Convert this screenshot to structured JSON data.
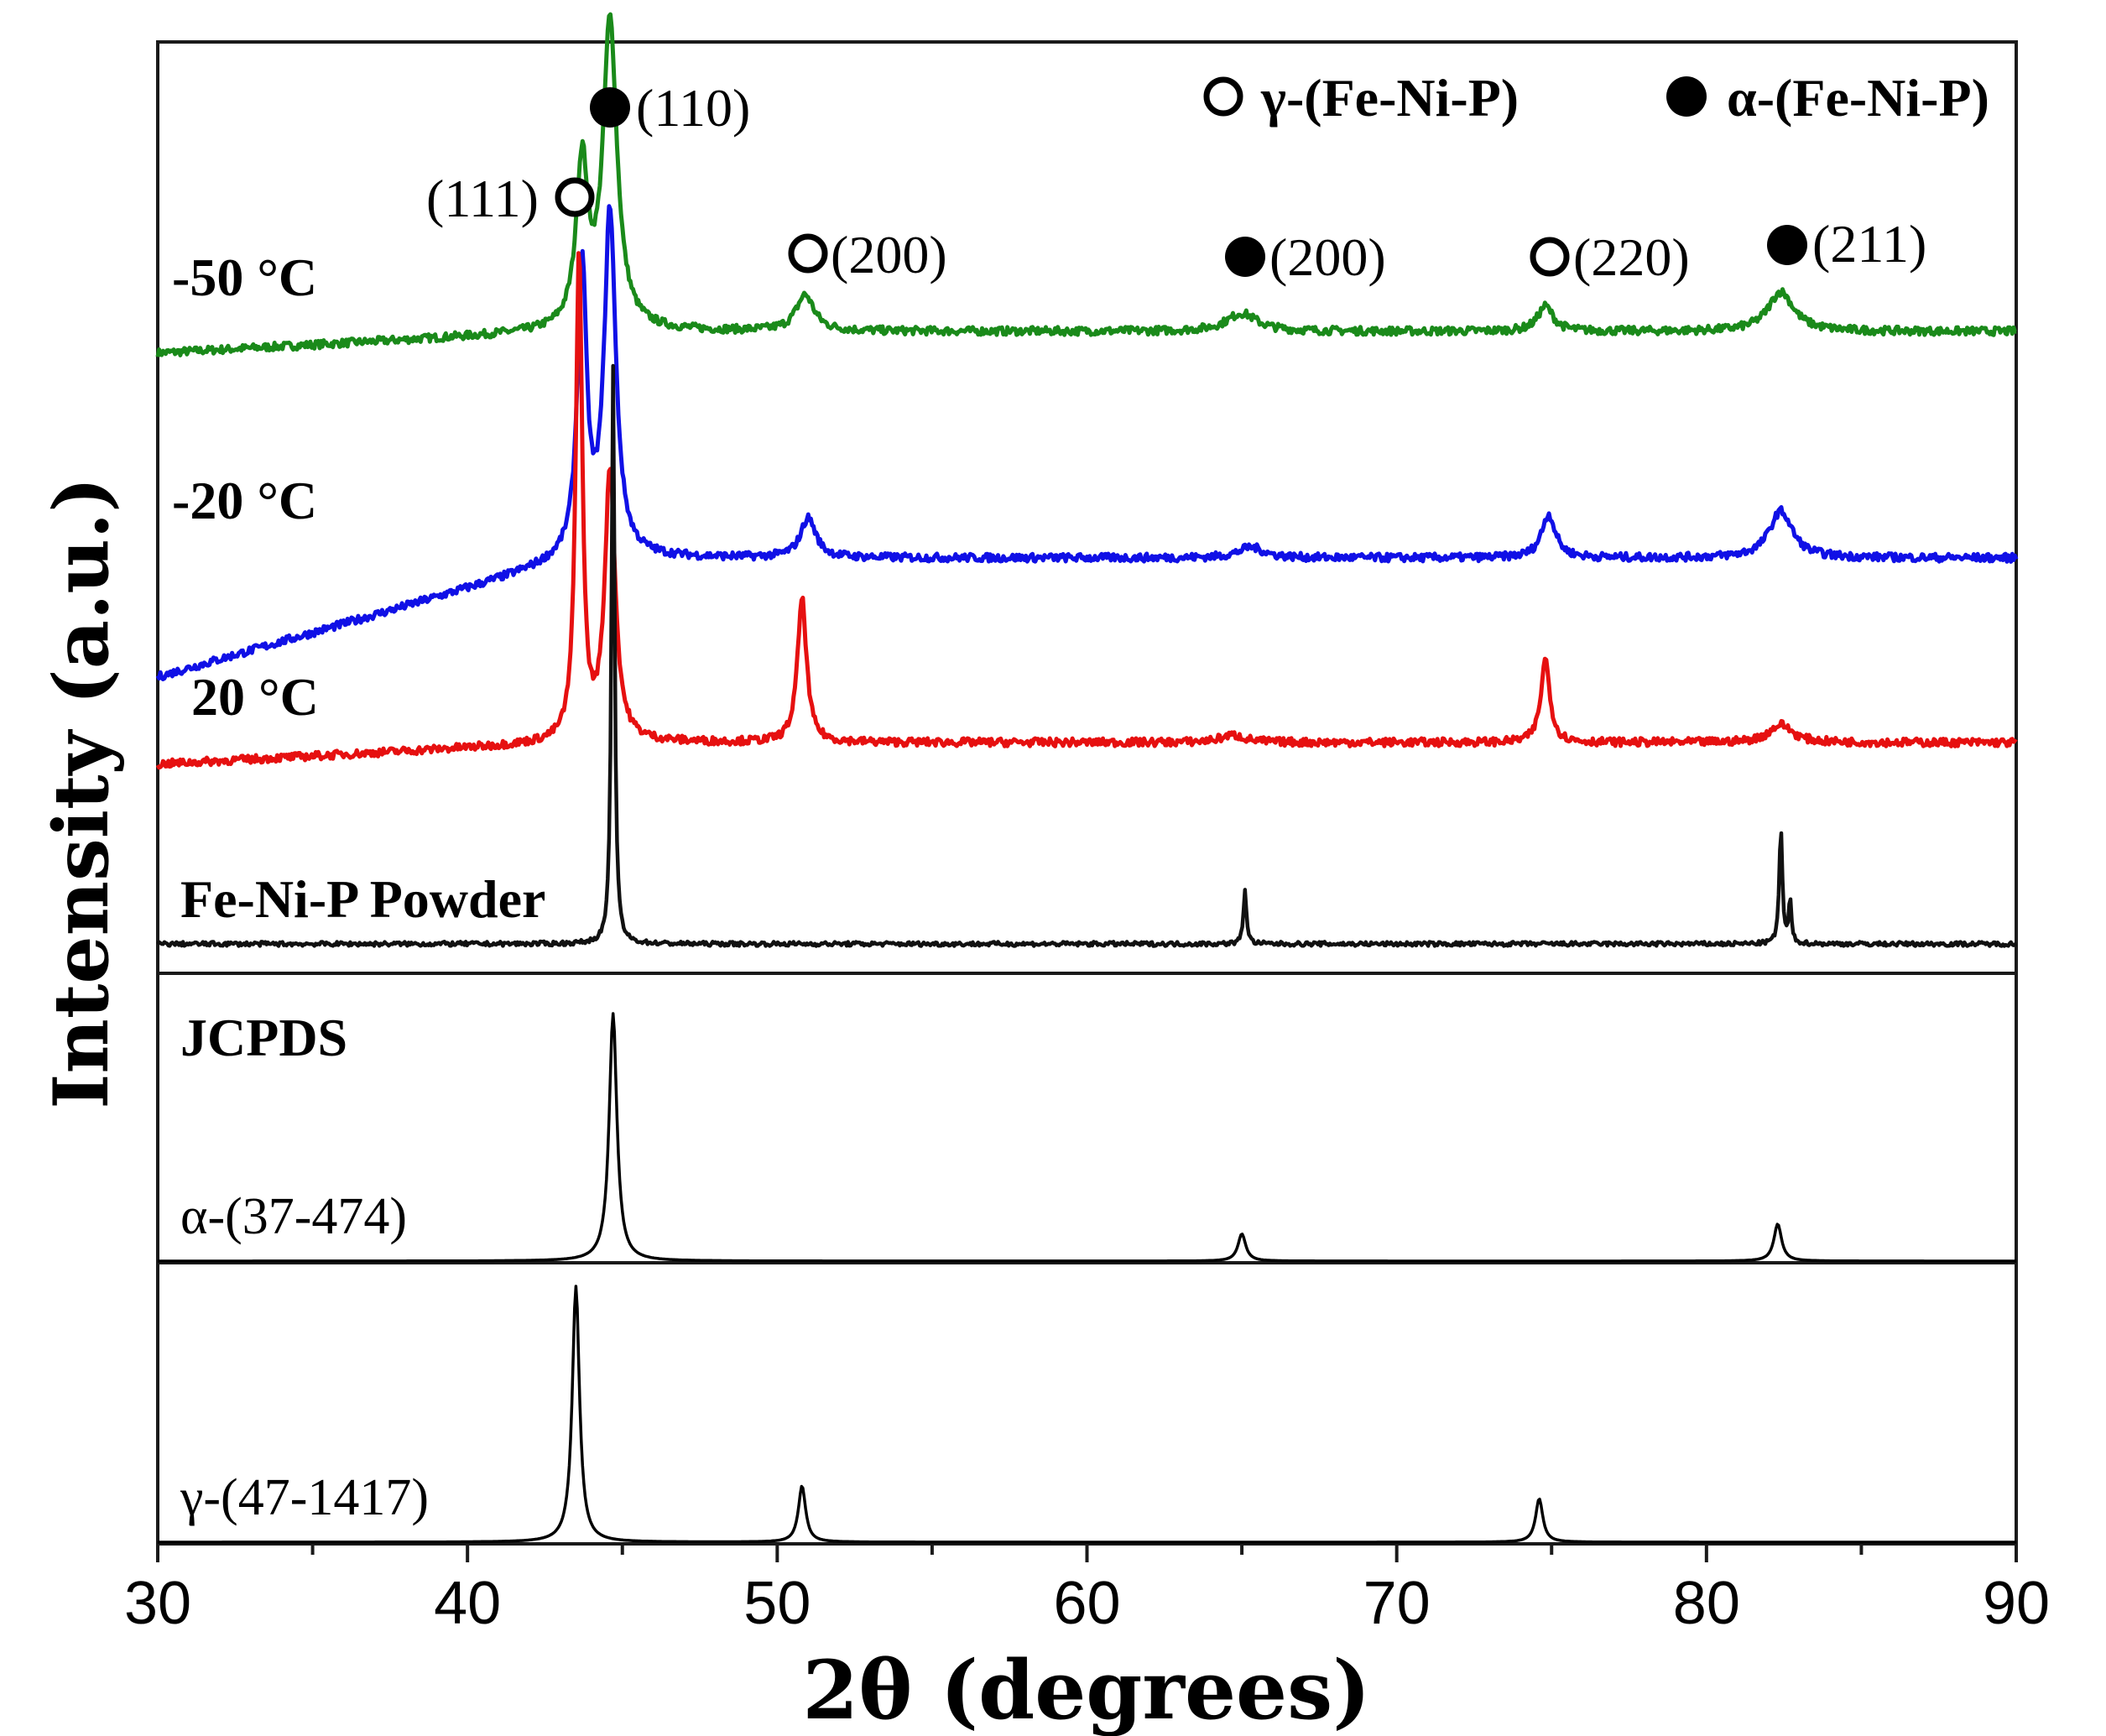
{
  "chart_data": {
    "type": "line",
    "title": "",
    "xlabel": "2θ (degrees)",
    "ylabel": "Intensity (a.u.)",
    "xlim": [
      30,
      90
    ],
    "xticks": [
      30,
      40,
      50,
      60,
      70,
      80,
      90
    ],
    "xtick_labels": [
      "30",
      "40",
      "50",
      "60",
      "70",
      "80",
      "90"
    ],
    "grid": false,
    "legend": [
      {
        "marker": "open-circle",
        "label": "γ-(Fe-Ni-P)"
      },
      {
        "marker": "filled-circle",
        "label": "α-(Fe-Ni-P)"
      }
    ],
    "panels": [
      {
        "name": "samples",
        "series": [
          {
            "name": "-50 °C",
            "color": "#1a8a1a",
            "baseline_start": 0.4,
            "baseline_end": 0.71,
            "noise": 0.011,
            "peaks": [
              {
                "x": 43.7,
                "height": 0.45,
                "width": 0.45
              },
              {
                "x": 44.6,
                "height": 0.85,
                "width": 0.55
              },
              {
                "x": 50.9,
                "height": 0.1,
                "width": 0.7
              },
              {
                "x": 65.0,
                "height": 0.05,
                "width": 1.2
              },
              {
                "x": 74.8,
                "height": 0.07,
                "width": 0.6
              },
              {
                "x": 82.4,
                "height": 0.11,
                "width": 1.0
              }
            ]
          },
          {
            "name": "-20 °C",
            "color": "#1010e6",
            "baseline_start": 0.4,
            "baseline_end": 0.71,
            "noise": 0.011,
            "peaks": [
              {
                "x": 43.7,
                "height": 0.8,
                "width": 0.35
              },
              {
                "x": 44.6,
                "height": 0.95,
                "width": 0.45
              },
              {
                "x": 51.0,
                "height": 0.11,
                "width": 0.6
              },
              {
                "x": 65.3,
                "height": 0.03,
                "width": 1.0
              },
              {
                "x": 74.9,
                "height": 0.12,
                "width": 0.55
              },
              {
                "x": 82.4,
                "height": 0.13,
                "width": 0.9
              }
            ]
          },
          {
            "name": "20 °C",
            "color": "#e61010",
            "baseline_start": 0.4,
            "baseline_end": 0.71,
            "noise": 0.011,
            "peaks": [
              {
                "x": 43.6,
                "height": 1.35,
                "width": 0.25
              },
              {
                "x": 44.6,
                "height": 0.75,
                "width": 0.4
              },
              {
                "x": 50.8,
                "height": 0.4,
                "width": 0.35
              },
              {
                "x": 64.7,
                "height": 0.02,
                "width": 1.0
              },
              {
                "x": 74.8,
                "height": 0.23,
                "width": 0.35
              },
              {
                "x": 82.4,
                "height": 0.05,
                "width": 0.9
              }
            ]
          },
          {
            "name": "Fe-Ni-P Powder",
            "color": "#111111",
            "baseline_start": 0.25,
            "baseline_end": 0.25,
            "noise": 0.006,
            "peaks": [
              {
                "x": 44.7,
                "height": 1.6,
                "width": 0.12
              },
              {
                "x": 65.1,
                "height": 0.15,
                "width": 0.12
              },
              {
                "x": 82.4,
                "height": 0.32,
                "width": 0.12
              },
              {
                "x": 82.7,
                "height": 0.12,
                "width": 0.1
              }
            ]
          }
        ]
      },
      {
        "name": "JCPDS α",
        "header": "JCPDS",
        "label": "α-(37-474)",
        "series": [
          {
            "name": "α-(37-474)",
            "color": "#000000",
            "peaks": [
              {
                "x": 44.7,
                "height": 1.0,
                "width": 0.3
              },
              {
                "x": 65.0,
                "height": 0.11,
                "width": 0.3
              },
              {
                "x": 82.3,
                "height": 0.15,
                "width": 0.3
              }
            ]
          }
        ]
      },
      {
        "name": "JCPDS γ",
        "label": "γ-(47-1417)",
        "series": [
          {
            "name": "γ-(47-1417)",
            "color": "#000000",
            "peaks": [
              {
                "x": 43.5,
                "height": 1.0,
                "width": 0.28
              },
              {
                "x": 50.8,
                "height": 0.22,
                "width": 0.28
              },
              {
                "x": 74.6,
                "height": 0.17,
                "width": 0.28
              }
            ]
          }
        ]
      }
    ],
    "annotations": [
      {
        "text": "(111)",
        "marker": "open-circle",
        "marker_side": "right",
        "x": 43.7
      },
      {
        "text": "(110)",
        "marker": "filled-circle",
        "marker_side": "left",
        "x": 44.6
      },
      {
        "text": "(200)",
        "marker": "open-circle",
        "marker_side": "left",
        "x": 51.0
      },
      {
        "text": "(200)",
        "marker": "filled-circle",
        "marker_side": "left",
        "x": 65.3
      },
      {
        "text": "(220)",
        "marker": "open-circle",
        "marker_side": "left",
        "x": 74.9
      },
      {
        "text": "(211)",
        "marker": "filled-circle",
        "marker_side": "left",
        "x": 82.4
      }
    ]
  }
}
